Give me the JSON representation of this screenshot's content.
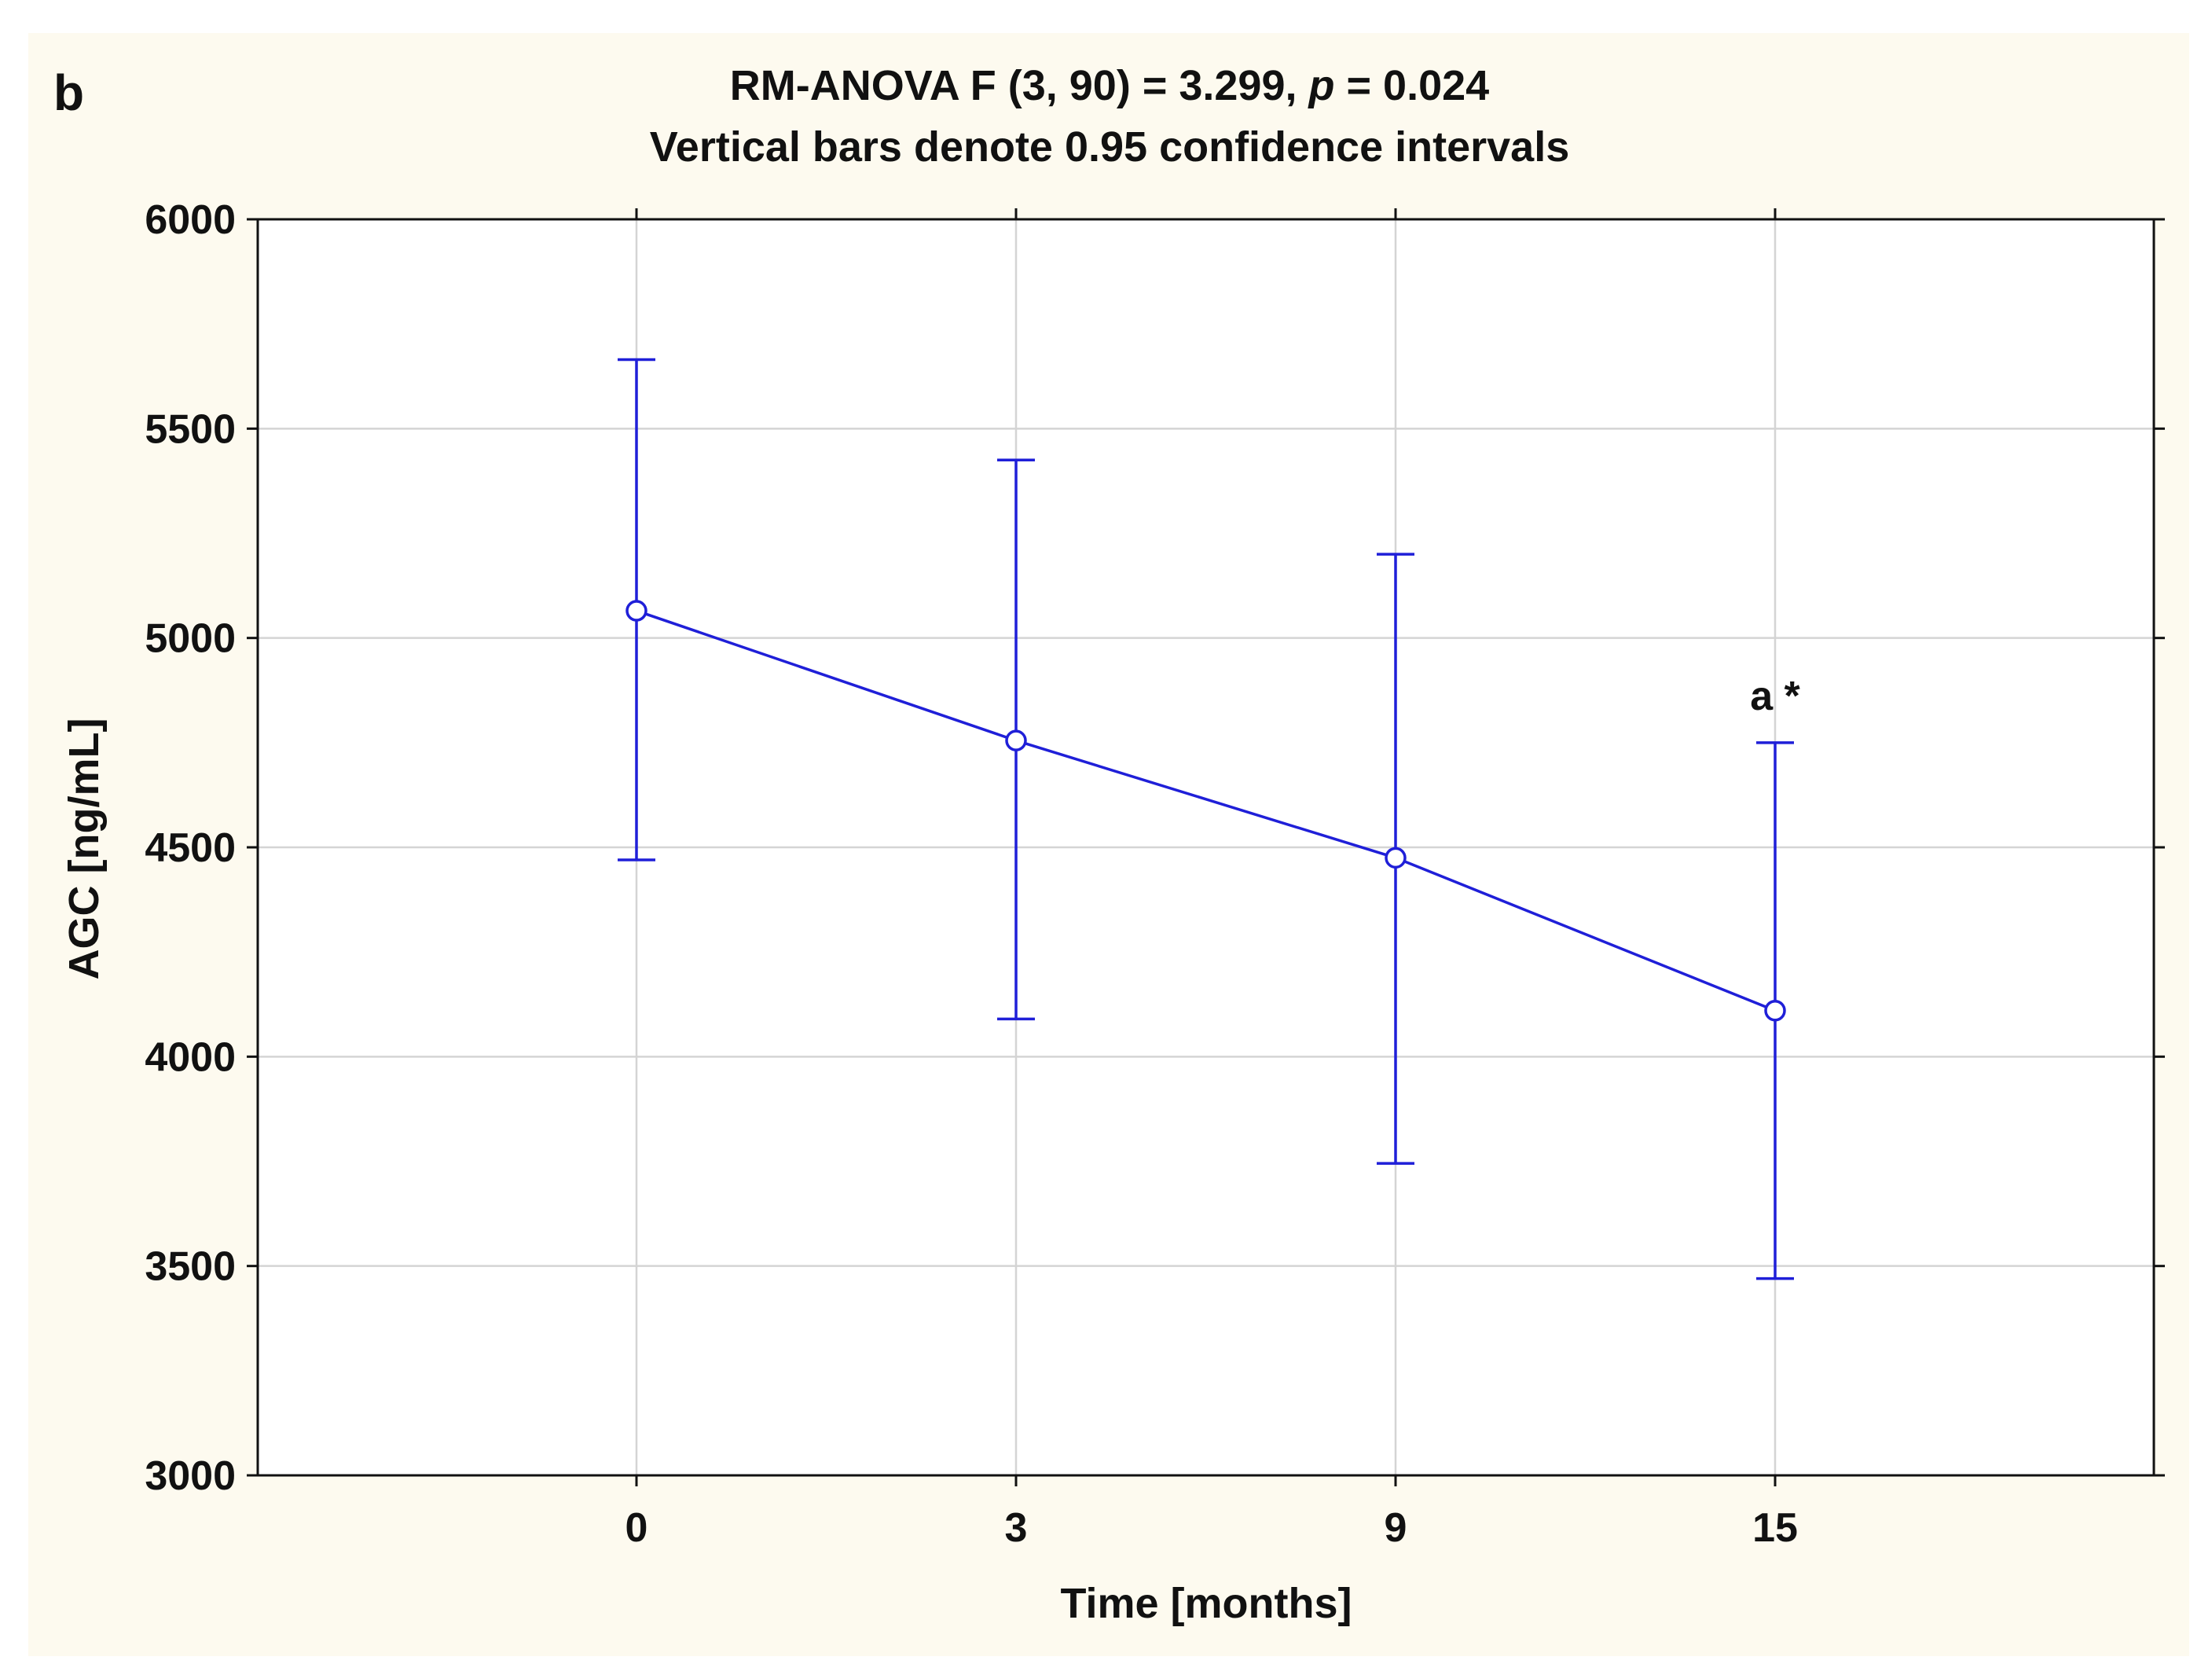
{
  "panel_label": "b",
  "chart_data": {
    "type": "line",
    "title_parts": {
      "prefix": "RM-ANOVA F (3, 90) = 3.299, ",
      "italic": "p",
      "suffix": " = 0.024"
    },
    "subtitle": "Vertical bars denote 0.95 confidence intervals",
    "xlabel": "Time [months]",
    "ylabel": "AGC [ng/mL]",
    "categories": [
      "0",
      "3",
      "9",
      "15"
    ],
    "ylim": [
      3000,
      6000
    ],
    "yticks": [
      3000,
      3500,
      4000,
      4500,
      5000,
      5500,
      6000
    ],
    "ytick_labels": [
      "3000",
      "3500",
      "4000",
      "4500",
      "5000",
      "5500",
      "6000"
    ],
    "series": [
      {
        "name": "AGC",
        "values": [
          5065,
          4755,
          4475,
          4110
        ],
        "ci_lower": [
          4470,
          4090,
          3745,
          3470
        ],
        "ci_upper": [
          5665,
          5425,
          5200,
          4750
        ]
      }
    ],
    "annotations": [
      {
        "category_index": 3,
        "text": "a *"
      }
    ],
    "grid": true,
    "colors": {
      "series": "#1f1fd8",
      "grid": "#d4d4d4",
      "axis": "#111111",
      "panel_background": "#fdfaef",
      "plot_background": "#ffffff"
    }
  }
}
